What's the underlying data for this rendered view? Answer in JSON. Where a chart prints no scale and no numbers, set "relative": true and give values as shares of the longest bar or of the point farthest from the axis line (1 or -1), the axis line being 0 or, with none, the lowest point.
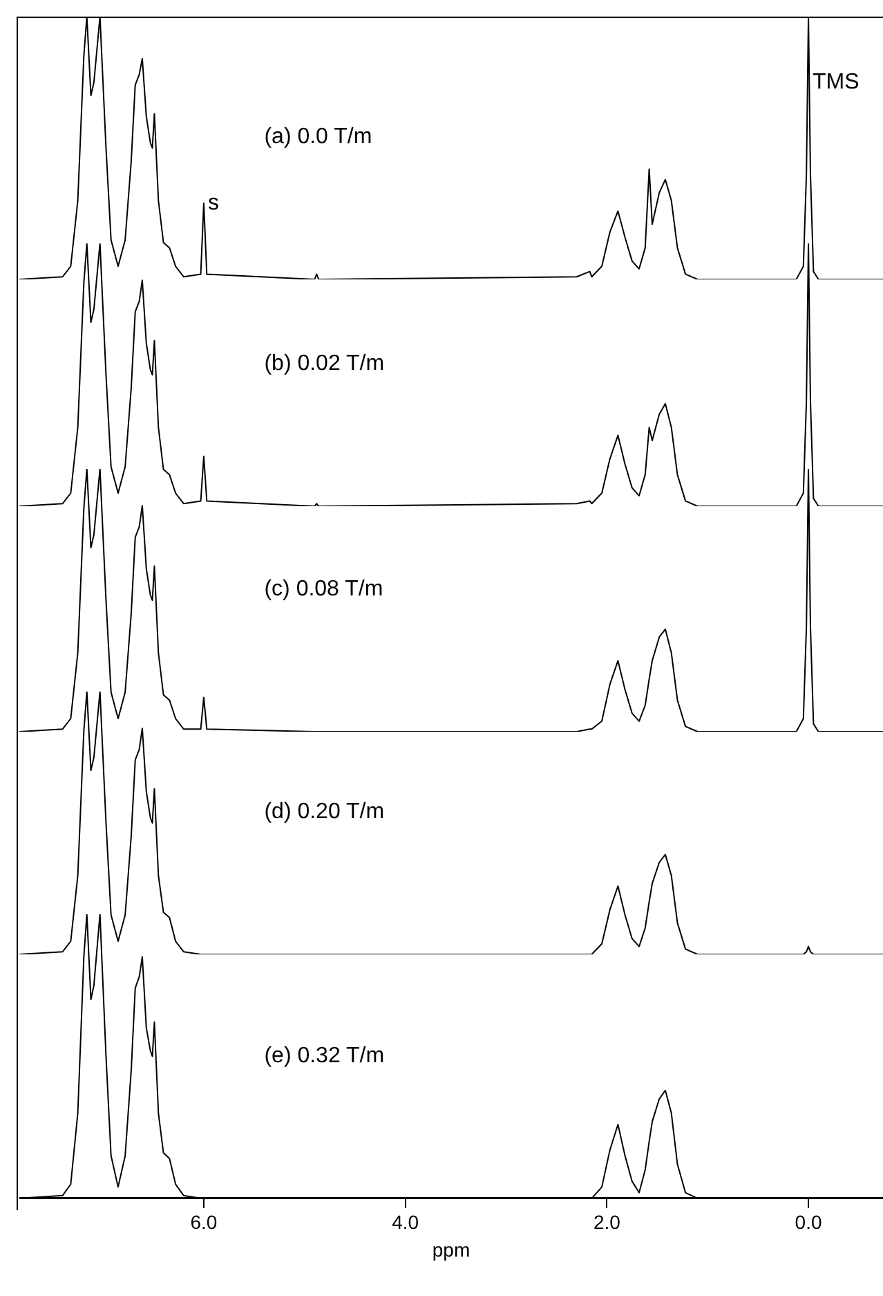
{
  "chart_data": [
    {
      "type": "line",
      "relative": true,
      "title": "(a) 0.0 T/m",
      "color": "#000000",
      "xlim": [
        7.83,
        -0.74
      ],
      "tick_labels": false,
      "annotations": [
        {
          "text": "s",
          "x": 6.0,
          "y": 0.29
        },
        {
          "text": "TMS",
          "x": 0.0,
          "y": 0.75
        }
      ],
      "x": [
        7.83,
        7.4,
        7.32,
        7.25,
        7.19,
        7.16,
        7.12,
        7.09,
        7.03,
        6.97,
        6.92,
        6.85,
        6.78,
        6.72,
        6.68,
        6.64,
        6.61,
        6.57,
        6.53,
        6.51,
        6.49,
        6.45,
        6.4,
        6.34,
        6.28,
        6.2,
        6.03,
        6.0,
        5.97,
        4.9,
        4.88,
        4.86,
        2.3,
        2.17,
        2.15,
        2.05,
        1.97,
        1.89,
        1.82,
        1.75,
        1.68,
        1.62,
        1.58,
        1.55,
        1.48,
        1.42,
        1.36,
        1.3,
        1.22,
        1.1,
        0.12,
        0.05,
        0.02,
        0.0,
        -0.02,
        -0.05,
        -0.1,
        -0.74
      ],
      "values": [
        0,
        0.01,
        0.05,
        0.3,
        0.85,
        1,
        0.7,
        0.75,
        1,
        0.5,
        0.15,
        0.05,
        0.15,
        0.45,
        0.74,
        0.78,
        0.84,
        0.62,
        0.52,
        0.5,
        0.63,
        0.3,
        0.14,
        0.12,
        0.05,
        0.01,
        0.02,
        0.29,
        0.02,
        0,
        0.02,
        0,
        0.01,
        0.03,
        0.01,
        0.05,
        0.18,
        0.26,
        0.16,
        0.07,
        0.04,
        0.12,
        0.42,
        0.21,
        0.33,
        0.38,
        0.3,
        0.12,
        0.02,
        0,
        0,
        0.05,
        0.4,
        1,
        0.4,
        0.03,
        0,
        0
      ]
    },
    {
      "type": "line",
      "relative": true,
      "title": "(b) 0.02 T/m",
      "color": "#000000",
      "xlim": [
        7.83,
        -0.74
      ],
      "tick_labels": false,
      "x": [
        7.83,
        7.4,
        7.32,
        7.25,
        7.19,
        7.16,
        7.12,
        7.09,
        7.03,
        6.97,
        6.92,
        6.85,
        6.78,
        6.72,
        6.68,
        6.64,
        6.61,
        6.57,
        6.53,
        6.51,
        6.49,
        6.45,
        6.4,
        6.34,
        6.28,
        6.2,
        6.03,
        6.0,
        5.97,
        4.9,
        4.88,
        4.86,
        2.3,
        2.17,
        2.15,
        2.05,
        1.97,
        1.89,
        1.82,
        1.75,
        1.68,
        1.62,
        1.58,
        1.55,
        1.48,
        1.42,
        1.36,
        1.3,
        1.22,
        1.1,
        0.12,
        0.05,
        0.02,
        0.0,
        -0.02,
        -0.05,
        -0.1,
        -0.74
      ],
      "values": [
        0,
        0.01,
        0.05,
        0.3,
        0.85,
        1,
        0.7,
        0.75,
        1,
        0.5,
        0.15,
        0.05,
        0.15,
        0.45,
        0.74,
        0.78,
        0.86,
        0.62,
        0.52,
        0.5,
        0.63,
        0.3,
        0.14,
        0.12,
        0.05,
        0.01,
        0.02,
        0.19,
        0.02,
        0,
        0.01,
        0,
        0.01,
        0.02,
        0.01,
        0.05,
        0.18,
        0.27,
        0.16,
        0.07,
        0.04,
        0.12,
        0.3,
        0.25,
        0.35,
        0.39,
        0.3,
        0.12,
        0.02,
        0,
        0,
        0.05,
        0.4,
        1,
        0.4,
        0.03,
        0,
        0
      ]
    },
    {
      "type": "line",
      "relative": true,
      "title": "(c) 0.08 T/m",
      "color": "#000000",
      "xlim": [
        7.83,
        -0.74
      ],
      "tick_labels": false,
      "x": [
        7.83,
        7.4,
        7.32,
        7.25,
        7.19,
        7.16,
        7.12,
        7.09,
        7.03,
        6.97,
        6.92,
        6.85,
        6.78,
        6.72,
        6.68,
        6.64,
        6.61,
        6.57,
        6.53,
        6.51,
        6.49,
        6.45,
        6.4,
        6.34,
        6.28,
        6.2,
        6.03,
        6.0,
        5.97,
        4.9,
        4.88,
        4.86,
        2.3,
        2.17,
        2.15,
        2.05,
        1.97,
        1.89,
        1.82,
        1.75,
        1.68,
        1.62,
        1.58,
        1.55,
        1.48,
        1.42,
        1.36,
        1.3,
        1.22,
        1.1,
        0.12,
        0.05,
        0.02,
        0.0,
        -0.02,
        -0.05,
        -0.1,
        -0.74
      ],
      "values": [
        0,
        0.01,
        0.05,
        0.3,
        0.85,
        1,
        0.7,
        0.75,
        1,
        0.5,
        0.15,
        0.05,
        0.15,
        0.45,
        0.74,
        0.78,
        0.86,
        0.62,
        0.52,
        0.5,
        0.63,
        0.3,
        0.14,
        0.12,
        0.05,
        0.01,
        0.01,
        0.13,
        0.01,
        0,
        0,
        0,
        0,
        0.01,
        0.01,
        0.04,
        0.18,
        0.27,
        0.16,
        0.07,
        0.04,
        0.1,
        0.2,
        0.27,
        0.36,
        0.39,
        0.3,
        0.12,
        0.02,
        0,
        0,
        0.05,
        0.4,
        1,
        0.4,
        0.03,
        0,
        0
      ]
    },
    {
      "type": "line",
      "relative": true,
      "title": "(d) 0.20 T/m",
      "color": "#000000",
      "xlim": [
        7.83,
        -0.74
      ],
      "tick_labels": false,
      "x": [
        7.83,
        7.4,
        7.32,
        7.25,
        7.19,
        7.16,
        7.12,
        7.09,
        7.03,
        6.97,
        6.92,
        6.85,
        6.78,
        6.72,
        6.68,
        6.64,
        6.61,
        6.57,
        6.53,
        6.51,
        6.49,
        6.45,
        6.4,
        6.34,
        6.28,
        6.2,
        6.03,
        6.0,
        5.97,
        4.9,
        4.88,
        4.86,
        2.3,
        2.17,
        2.15,
        2.05,
        1.97,
        1.89,
        1.82,
        1.75,
        1.68,
        1.62,
        1.58,
        1.55,
        1.48,
        1.42,
        1.36,
        1.3,
        1.22,
        1.1,
        0.12,
        0.05,
        0.02,
        0.0,
        -0.02,
        -0.05,
        -0.1,
        -0.74
      ],
      "values": [
        0,
        0.01,
        0.05,
        0.3,
        0.85,
        1,
        0.7,
        0.75,
        1,
        0.5,
        0.15,
        0.05,
        0.15,
        0.45,
        0.74,
        0.78,
        0.86,
        0.62,
        0.52,
        0.5,
        0.63,
        0.3,
        0.16,
        0.14,
        0.05,
        0.01,
        0,
        0,
        0,
        0,
        0,
        0,
        0,
        0,
        0,
        0.04,
        0.17,
        0.26,
        0.15,
        0.06,
        0.03,
        0.1,
        0.2,
        0.27,
        0.35,
        0.38,
        0.3,
        0.12,
        0.02,
        0,
        0,
        0,
        0.01,
        0.03,
        0.01,
        0,
        0,
        0
      ]
    },
    {
      "type": "line",
      "relative": true,
      "title": "(e) 0.32 T/m",
      "color": "#000000",
      "xlim": [
        7.83,
        -0.74
      ],
      "xticks": [
        {
          "value": 6,
          "label": "6.0"
        },
        {
          "value": 4,
          "label": "4.0"
        },
        {
          "value": 2,
          "label": "2.0"
        },
        {
          "value": 0,
          "label": "0.0"
        }
      ],
      "xlabel": "ppm",
      "tick_labels": "x",
      "x": [
        7.83,
        7.4,
        7.32,
        7.25,
        7.19,
        7.16,
        7.12,
        7.09,
        7.03,
        6.97,
        6.92,
        6.85,
        6.78,
        6.72,
        6.68,
        6.64,
        6.61,
        6.57,
        6.53,
        6.51,
        6.49,
        6.45,
        6.4,
        6.34,
        6.28,
        6.2,
        6.03,
        6.0,
        5.97,
        4.9,
        4.88,
        4.86,
        2.3,
        2.17,
        2.15,
        2.05,
        1.97,
        1.89,
        1.82,
        1.75,
        1.68,
        1.62,
        1.58,
        1.55,
        1.48,
        1.42,
        1.36,
        1.3,
        1.22,
        1.1,
        0.12,
        0.05,
        0.02,
        0.0,
        -0.02,
        -0.05,
        -0.1,
        -0.74
      ],
      "values": [
        0,
        0.01,
        0.05,
        0.3,
        0.85,
        1,
        0.7,
        0.75,
        1,
        0.5,
        0.15,
        0.04,
        0.15,
        0.45,
        0.74,
        0.78,
        0.85,
        0.6,
        0.52,
        0.5,
        0.62,
        0.3,
        0.16,
        0.14,
        0.05,
        0.01,
        0,
        0,
        0,
        0,
        0,
        0,
        0,
        0,
        0,
        0.04,
        0.17,
        0.26,
        0.15,
        0.06,
        0.02,
        0.1,
        0.2,
        0.27,
        0.35,
        0.38,
        0.3,
        0.12,
        0.02,
        0,
        0,
        0,
        0,
        0,
        0,
        0,
        0,
        0
      ]
    }
  ]
}
